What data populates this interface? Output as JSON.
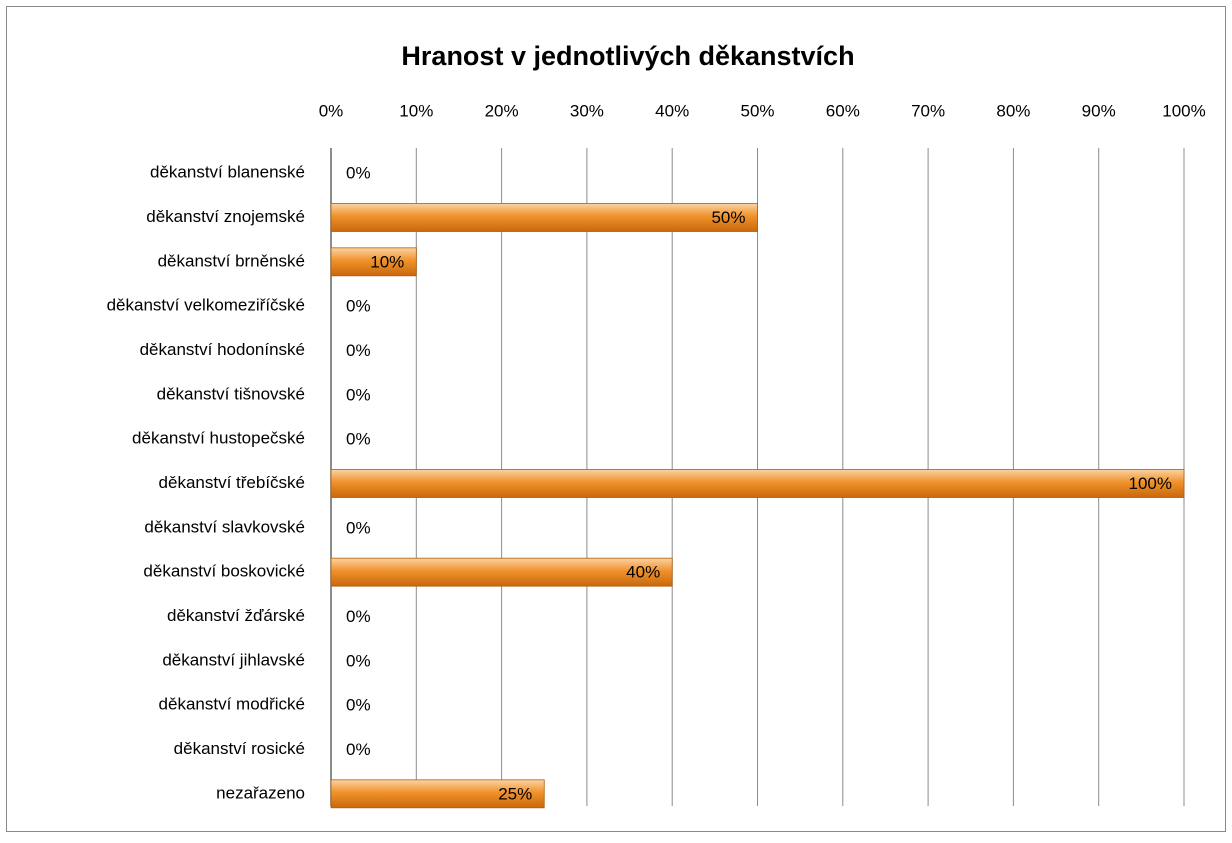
{
  "chart_data": {
    "type": "bar",
    "orientation": "horizontal",
    "title": "Hranost v jednotlivých děkanstvích",
    "categories": [
      "děkanství blanenské",
      "děkanství znojemské",
      "děkanství brněnské",
      "děkanství velkomeziříčské",
      "děkanství hodonínské",
      "děkanství tišnovské",
      "děkanství hustopečské",
      "děkanství třebíčské",
      "děkanství slavkovské",
      "děkanství boskovické",
      "děkanství žďárské",
      "děkanství jihlavské",
      "děkanství modřické",
      "děkanství rosické",
      "nezařazeno"
    ],
    "values": [
      0,
      50,
      10,
      0,
      0,
      0,
      0,
      100,
      0,
      40,
      0,
      0,
      0,
      0,
      25
    ],
    "value_labels": [
      "0%",
      "50%",
      "10%",
      "0%",
      "0%",
      "0%",
      "0%",
      "100%",
      "0%",
      "40%",
      "0%",
      "0%",
      "0%",
      "0%",
      "25%"
    ],
    "color": "#f0922c",
    "xlim": [
      0,
      100
    ],
    "xticks": [
      {
        "value": 0,
        "label": "0%"
      },
      {
        "value": 10,
        "label": "10%"
      },
      {
        "value": 20,
        "label": "20%"
      },
      {
        "value": 30,
        "label": "30%"
      },
      {
        "value": 40,
        "label": "40%"
      },
      {
        "value": 50,
        "label": "50%"
      },
      {
        "value": 60,
        "label": "60%"
      },
      {
        "value": 70,
        "label": "70%"
      },
      {
        "value": 80,
        "label": "80%"
      },
      {
        "value": 90,
        "label": "90%"
      },
      {
        "value": 100,
        "label": "100%"
      }
    ],
    "grid": true
  }
}
